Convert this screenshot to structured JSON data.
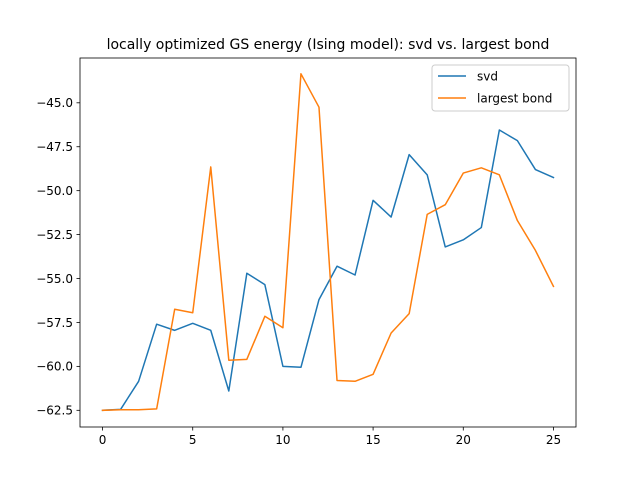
{
  "chart_data": {
    "type": "line",
    "title": "locally optimized GS energy (Ising model): svd vs. largest bond",
    "xlabel": "",
    "ylabel": "",
    "x": [
      0,
      1,
      2,
      3,
      4,
      5,
      6,
      7,
      8,
      9,
      10,
      11,
      12,
      13,
      14,
      15,
      16,
      17,
      18,
      19,
      20,
      21,
      22,
      23,
      24,
      25
    ],
    "series": [
      {
        "name": "svd",
        "color": "#1f77b4",
        "values": [
          -62.5,
          -62.45,
          -60.85,
          -57.6,
          -57.95,
          -57.55,
          -57.95,
          -61.4,
          -54.7,
          -55.35,
          -60.0,
          -60.05,
          -56.2,
          -54.3,
          -54.8,
          -50.55,
          -51.5,
          -47.95,
          -49.1,
          -53.2,
          -52.8,
          -52.1,
          -46.55,
          -47.15,
          -48.8,
          -49.25
        ]
      },
      {
        "name": "largest bond",
        "color": "#ff7f0e",
        "values": [
          -62.5,
          -62.47,
          -62.47,
          -62.42,
          -56.75,
          -56.95,
          -48.65,
          -59.65,
          -59.6,
          -57.15,
          -57.8,
          -43.35,
          -45.25,
          -60.8,
          -60.85,
          -60.45,
          -58.1,
          -57.0,
          -51.35,
          -50.8,
          -49.0,
          -48.7,
          -49.1,
          -51.7,
          -53.4,
          -55.45
        ]
      }
    ],
    "xlim": [
      -1.25,
      26.25
    ],
    "ylim": [
      -63.45,
      -42.45
    ],
    "xticks": [
      0,
      5,
      10,
      15,
      20,
      25
    ],
    "yticks": [
      -62.5,
      -60.0,
      -57.5,
      -55.0,
      -52.5,
      -50.0,
      -47.5,
      -45.0
    ],
    "xtick_labels": [
      "0",
      "5",
      "10",
      "15",
      "20",
      "25"
    ],
    "ytick_labels": [
      "−62.5",
      "−60.0",
      "−57.5",
      "−55.0",
      "−52.5",
      "−50.0",
      "−47.5",
      "−45.0"
    ],
    "grid": false,
    "legend_position": "top-right"
  }
}
